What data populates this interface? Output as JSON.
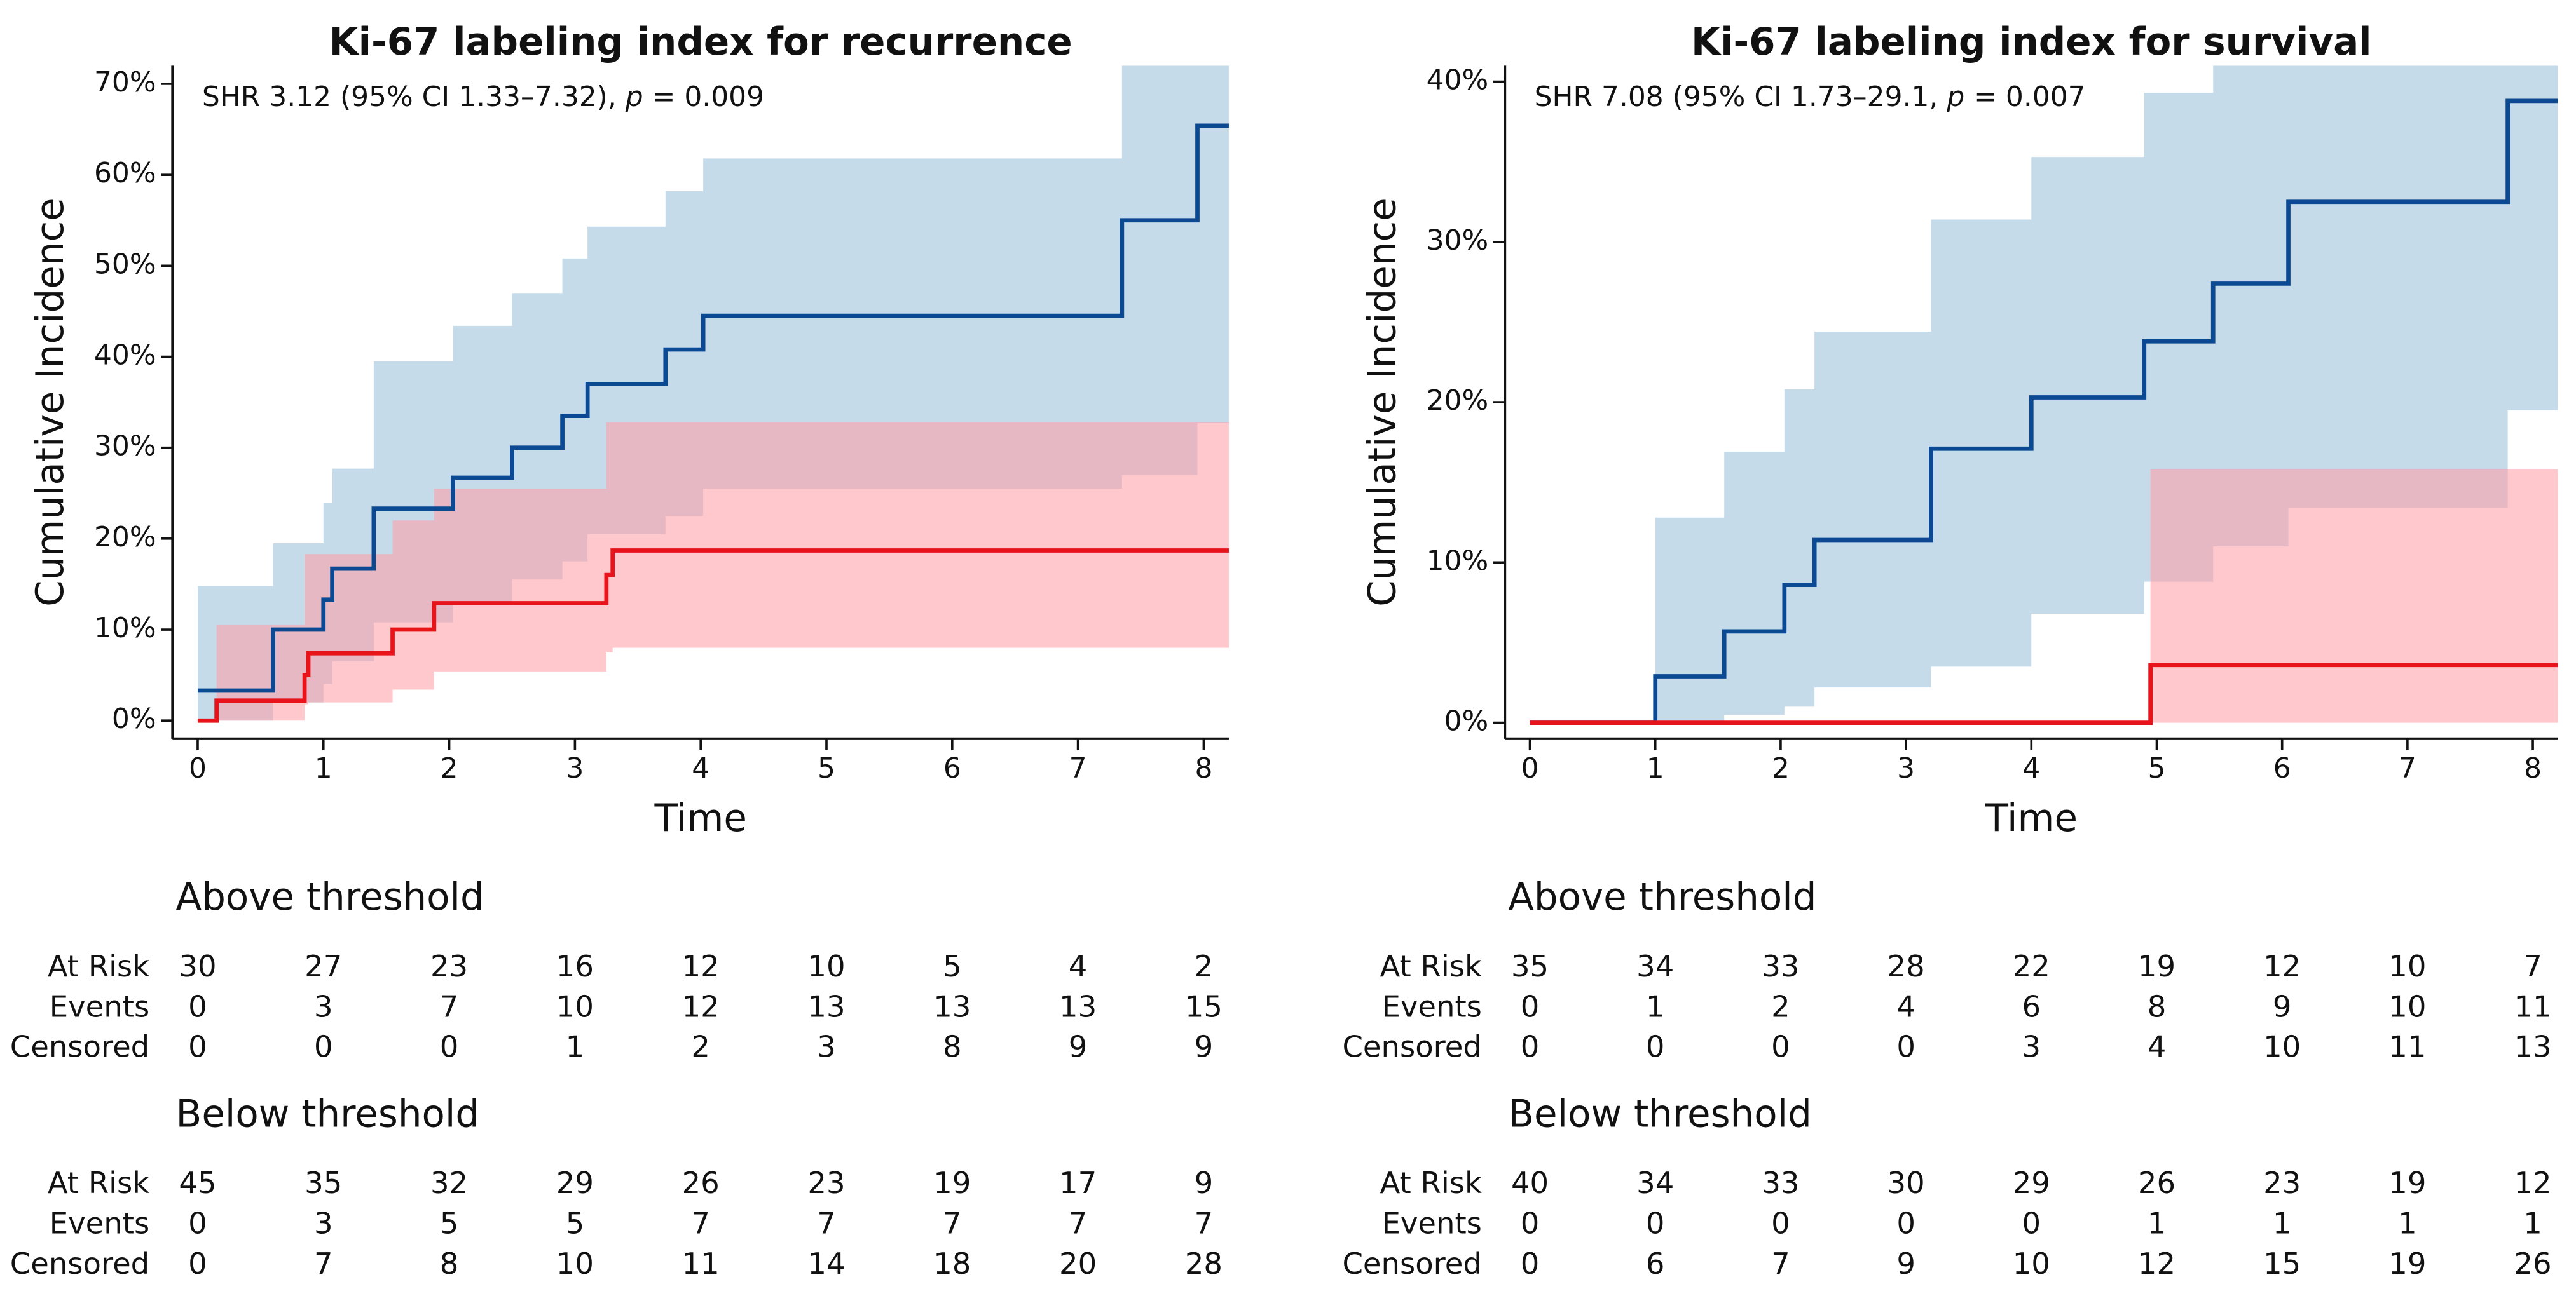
{
  "chart_data": [
    {
      "type": "step",
      "title": "Ki-67 labeling index for recurrence",
      "annotation": [
        {
          "text": "SHR 3.12 (95% CI 1.33–7.32), "
        },
        {
          "text": "p",
          "italic": true
        },
        {
          "text": " = 0.009"
        }
      ],
      "xlabel": "Time",
      "ylabel": "Cumulative Incidence",
      "xlim": [
        -0.2,
        8.2
      ],
      "xticks": [
        0,
        1,
        2,
        3,
        4,
        5,
        6,
        7,
        8
      ],
      "ylim": [
        -2,
        72
      ],
      "yticks": [
        {
          "value": 0,
          "label": "0%"
        },
        {
          "value": 10,
          "label": "10%"
        },
        {
          "value": 20,
          "label": "20%"
        },
        {
          "value": 30,
          "label": "30%"
        },
        {
          "value": 40,
          "label": "40%"
        },
        {
          "value": 50,
          "label": "50%"
        },
        {
          "value": 60,
          "label": "60%"
        },
        {
          "value": 70,
          "label": "70%"
        }
      ],
      "series": [
        {
          "name": "Above threshold",
          "color": "#0b4a92",
          "band_color": "#b3cfe3",
          "x": [
            0,
            0.6,
            1.0,
            1.07,
            1.4,
            2.03,
            2.5,
            2.9,
            3.1,
            3.72,
            4.02,
            7.35,
            7.95
          ],
          "values": [
            3.3,
            10.0,
            13.3,
            16.7,
            23.3,
            26.7,
            30.0,
            33.5,
            37.0,
            40.8,
            44.5,
            55.0,
            65.4
          ],
          "upper": [
            14.8,
            19.5,
            23.9,
            27.7,
            39.5,
            43.4,
            47.0,
            50.8,
            54.3,
            58.2,
            61.8,
            72.0,
            72.0
          ],
          "lower": [
            0,
            2.0,
            4.0,
            6.5,
            10.8,
            13.0,
            15.5,
            17.5,
            20.5,
            22.5,
            25.5,
            27.0,
            32.7
          ],
          "risk": [
            {
              "label": "At Risk",
              "values": [
                30,
                27,
                23,
                16,
                12,
                10,
                5,
                4,
                2
              ]
            },
            {
              "label": "Events",
              "values": [
                0,
                3,
                7,
                10,
                12,
                13,
                13,
                13,
                15
              ]
            },
            {
              "label": "Censored",
              "values": [
                0,
                0,
                0,
                1,
                2,
                3,
                8,
                9,
                9
              ]
            }
          ]
        },
        {
          "name": "Below threshold",
          "color": "#e8141c",
          "band_color": "#ff9aa3",
          "x": [
            0,
            0.15,
            0.85,
            0.88,
            1.55,
            1.88,
            3.25,
            3.3
          ],
          "values": [
            0,
            2.2,
            5.0,
            7.4,
            10.0,
            12.9,
            16.0,
            18.7
          ],
          "upper": [
            0,
            10.5,
            18.3,
            18.3,
            22.0,
            25.5,
            32.8,
            32.8
          ],
          "lower": [
            0,
            0,
            1.8,
            2.0,
            3.4,
            5.4,
            7.5,
            8.0
          ],
          "risk": [
            {
              "label": "At Risk",
              "values": [
                45,
                35,
                32,
                29,
                26,
                23,
                19,
                17,
                9
              ]
            },
            {
              "label": "Events",
              "values": [
                0,
                3,
                5,
                5,
                7,
                7,
                7,
                7,
                7
              ]
            },
            {
              "label": "Censored",
              "values": [
                0,
                7,
                8,
                10,
                11,
                14,
                18,
                20,
                28
              ]
            }
          ]
        }
      ]
    },
    {
      "type": "step",
      "title": "Ki-67 labeling index for survival",
      "annotation": [
        {
          "text": "SHR 7.08 (95% CI 1.73–29.1, "
        },
        {
          "text": "p",
          "italic": true
        },
        {
          "text": " = 0.007"
        }
      ],
      "xlabel": "Time",
      "ylabel": "Cumulative Incidence",
      "xlim": [
        -0.2,
        8.2
      ],
      "xticks": [
        0,
        1,
        2,
        3,
        4,
        5,
        6,
        7,
        8
      ],
      "ylim": [
        -1,
        41
      ],
      "yticks": [
        {
          "value": 0,
          "label": "0%"
        },
        {
          "value": 10,
          "label": "10%"
        },
        {
          "value": 20,
          "label": "20%"
        },
        {
          "value": 30,
          "label": "30%"
        },
        {
          "value": 40,
          "label": "40%"
        }
      ],
      "series": [
        {
          "name": "Above threshold",
          "color": "#0b4a92",
          "band_color": "#b3cfe3",
          "x": [
            0,
            1.0,
            1.55,
            2.03,
            2.27,
            3.2,
            4.0,
            4.9,
            5.45,
            6.05,
            7.8
          ],
          "values": [
            0,
            2.9,
            5.7,
            8.6,
            11.4,
            17.1,
            20.3,
            23.8,
            27.4,
            32.5,
            38.8
          ],
          "upper": [
            0,
            12.8,
            16.9,
            20.8,
            24.4,
            31.4,
            35.3,
            39.3,
            41.0,
            41.0,
            41.0
          ],
          "lower": [
            0,
            0,
            0.5,
            1.0,
            2.2,
            3.5,
            6.8,
            8.8,
            11.0,
            13.4,
            19.5
          ],
          "risk": [
            {
              "label": "At Risk",
              "values": [
                35,
                34,
                33,
                28,
                22,
                19,
                12,
                10,
                7
              ]
            },
            {
              "label": "Events",
              "values": [
                0,
                1,
                2,
                4,
                6,
                8,
                9,
                10,
                11
              ]
            },
            {
              "label": "Censored",
              "values": [
                0,
                0,
                0,
                0,
                3,
                4,
                10,
                11,
                13
              ]
            }
          ]
        },
        {
          "name": "Below threshold",
          "color": "#e8141c",
          "band_color": "#ff9aa3",
          "x": [
            0,
            4.95
          ],
          "values": [
            0,
            3.6
          ],
          "upper": [
            0,
            15.8
          ],
          "lower": [
            0,
            0
          ],
          "risk": [
            {
              "label": "At Risk",
              "values": [
                40,
                34,
                33,
                30,
                29,
                26,
                23,
                19,
                12
              ]
            },
            {
              "label": "Events",
              "values": [
                0,
                0,
                0,
                0,
                0,
                1,
                1,
                1,
                1
              ]
            },
            {
              "label": "Censored",
              "values": [
                0,
                6,
                7,
                9,
                10,
                12,
                15,
                19,
                26
              ]
            }
          ]
        }
      ]
    }
  ]
}
